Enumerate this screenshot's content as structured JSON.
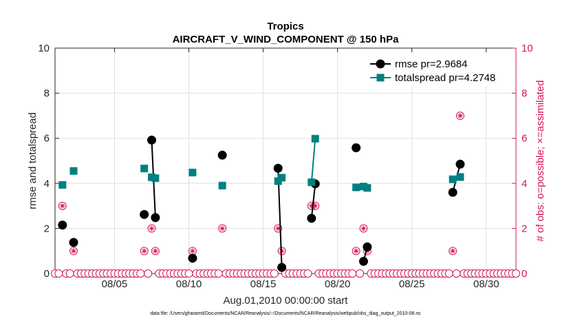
{
  "chart_data": {
    "type": "line",
    "title": "Tropics",
    "subtitle": "AIRCRAFT_V_WIND_COMPONENT @ 150 hPa",
    "xlabel": "Aug.01,2010 00:00:00 start",
    "ylabel": "rmse and totalspread",
    "y2label": "# of obs: o=possible; ×=assimilated",
    "footnote": "data file: /Users/gharamti/Documents/NCAR/Reanalysis/~/Documents/NCAR/Reanalysis/webpub/obs_diag_output_2010-08.nc",
    "xlim": [
      1,
      32
    ],
    "ylim": [
      0,
      10
    ],
    "y2lim": [
      0,
      10
    ],
    "x_ticks": [
      5,
      10,
      15,
      20,
      25,
      30
    ],
    "x_tick_labels": [
      "08/05",
      "08/10",
      "08/15",
      "08/20",
      "08/25",
      "08/30"
    ],
    "y_ticks": [
      0,
      2,
      4,
      6,
      8,
      10
    ],
    "y_tick_labels": [
      "0",
      "2",
      "4",
      "6",
      "8",
      "10"
    ],
    "y2_ticks": [
      0,
      2,
      4,
      6,
      8,
      10
    ],
    "y2_tick_labels": [
      "0",
      "2",
      "4",
      "6",
      "8",
      "10"
    ],
    "grid": true,
    "legend_position": "top-right",
    "series": [
      {
        "name": "rmse pr=2.9684",
        "color": "#000000",
        "marker": "circle",
        "x": [
          1.5,
          2.25,
          7.0,
          7.5,
          7.75,
          10.25,
          12.25,
          16.0,
          16.25,
          18.25,
          18.5,
          21.25,
          21.75,
          22.0,
          27.75,
          28.25
        ],
        "values": [
          2.15,
          1.38,
          2.62,
          5.92,
          2.48,
          0.68,
          5.25,
          4.67,
          0.27,
          2.45,
          3.98,
          5.58,
          0.54,
          1.18,
          3.6,
          4.85
        ],
        "connected_pairs": [
          [
            3,
            4
          ],
          [
            7,
            8
          ],
          [
            9,
            10
          ],
          [
            12,
            13
          ],
          [
            14,
            15
          ]
        ]
      },
      {
        "name": "totalspread pr=4.2748",
        "color": "#008080",
        "marker": "square",
        "x": [
          1.5,
          2.25,
          7.0,
          7.5,
          7.75,
          10.25,
          12.25,
          16.0,
          16.25,
          18.25,
          18.5,
          21.25,
          21.75,
          22.0,
          27.75,
          28.25
        ],
        "values": [
          3.93,
          4.55,
          4.66,
          4.27,
          4.23,
          4.48,
          3.9,
          4.1,
          4.25,
          4.05,
          5.98,
          3.82,
          3.86,
          3.8,
          4.18,
          4.28
        ],
        "connected_pairs": [
          [
            3,
            4
          ],
          [
            7,
            8
          ],
          [
            9,
            10
          ],
          [
            12,
            13
          ],
          [
            14,
            15
          ]
        ]
      },
      {
        "name": "# of obs",
        "axis": "right",
        "color": "#d4145a",
        "marker": "circle-asterisk",
        "x": [
          1.5,
          2.25,
          7.0,
          7.5,
          7.75,
          10.25,
          12.25,
          16.0,
          16.25,
          18.25,
          18.5,
          21.25,
          21.75,
          22.0,
          27.75,
          28.25
        ],
        "values": [
          3,
          1,
          1,
          2,
          1,
          1,
          2,
          2,
          1,
          3,
          3,
          1,
          2,
          1,
          1,
          7
        ]
      }
    ]
  }
}
